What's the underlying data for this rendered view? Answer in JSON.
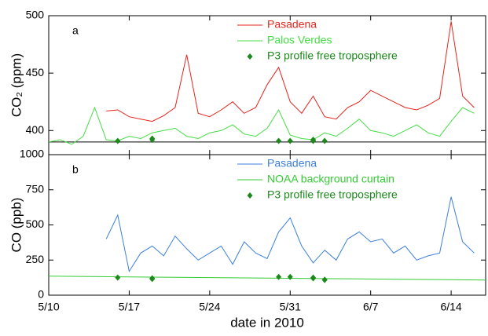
{
  "chart_data": [
    {
      "type": "line",
      "label": "a",
      "y_label": "CO₂ (ppm)",
      "xlim": [
        "2010-05-10",
        "2010-06-17"
      ],
      "ylim": [
        379,
        500
      ],
      "yticks": [
        400,
        450,
        500
      ],
      "hline": 390,
      "series": [
        {
          "name": "Pasadena",
          "color": "#e8231c",
          "style": "line",
          "x": [
            "2010-05-15",
            "2010-05-16",
            "2010-05-17",
            "2010-05-18",
            "2010-05-19",
            "2010-05-20",
            "2010-05-21",
            "2010-05-22",
            "2010-05-23",
            "2010-05-24",
            "2010-05-25",
            "2010-05-26",
            "2010-05-27",
            "2010-05-28",
            "2010-05-29",
            "2010-05-30",
            "2010-05-31",
            "2010-06-01",
            "2010-06-02",
            "2010-06-03",
            "2010-06-04",
            "2010-06-05",
            "2010-06-06",
            "2010-06-07",
            "2010-06-08",
            "2010-06-09",
            "2010-06-10",
            "2010-06-11",
            "2010-06-12",
            "2010-06-13",
            "2010-06-14",
            "2010-06-15",
            "2010-06-16"
          ],
          "values": [
            417,
            418,
            412,
            410,
            408,
            413,
            420,
            466,
            415,
            412,
            418,
            425,
            415,
            420,
            440,
            455,
            425,
            415,
            430,
            412,
            410,
            420,
            425,
            435,
            430,
            425,
            420,
            418,
            422,
            428,
            495,
            430,
            420
          ]
        },
        {
          "name": "Palos Verdes",
          "color": "#44dd44",
          "style": "line",
          "x": [
            "2010-05-10",
            "2010-05-11",
            "2010-05-12",
            "2010-05-13",
            "2010-05-14",
            "2010-05-15",
            "2010-05-16",
            "2010-05-17",
            "2010-05-18",
            "2010-05-19",
            "2010-05-20",
            "2010-05-21",
            "2010-05-22",
            "2010-05-23",
            "2010-05-24",
            "2010-05-25",
            "2010-05-26",
            "2010-05-27",
            "2010-05-28",
            "2010-05-29",
            "2010-05-30",
            "2010-05-31",
            "2010-06-01",
            "2010-06-02",
            "2010-06-03",
            "2010-06-04",
            "2010-06-05",
            "2010-06-06",
            "2010-06-07",
            "2010-06-08",
            "2010-06-09",
            "2010-06-10",
            "2010-06-11",
            "2010-06-12",
            "2010-06-13",
            "2010-06-14",
            "2010-06-15",
            "2010-06-16"
          ],
          "values": [
            390,
            392,
            388,
            395,
            420,
            392,
            391,
            395,
            393,
            398,
            400,
            402,
            395,
            393,
            398,
            400,
            405,
            397,
            395,
            402,
            418,
            396,
            393,
            392,
            398,
            395,
            402,
            410,
            400,
            398,
            395,
            400,
            405,
            398,
            395,
            408,
            420,
            415
          ]
        },
        {
          "name": "P3 profile free troposphere",
          "color": "#1b8a1b",
          "style": "markers",
          "x": [
            "2010-05-16",
            "2010-05-19",
            "2010-05-19",
            "2010-05-30",
            "2010-05-31",
            "2010-06-02",
            "2010-06-02",
            "2010-06-03"
          ],
          "values": [
            391,
            392,
            393,
            391,
            391,
            392,
            391,
            391
          ]
        }
      ]
    },
    {
      "type": "line",
      "label": "b",
      "y_label": "CO (ppb)",
      "x_label": "date in 2010",
      "xlim": [
        "2010-05-10",
        "2010-06-17"
      ],
      "ylim": [
        0,
        1000
      ],
      "yticks": [
        0,
        250,
        500,
        750,
        1000
      ],
      "xticks": [
        {
          "value": "2010-05-10",
          "label": "5/10"
        },
        {
          "value": "2010-05-17",
          "label": "5/17"
        },
        {
          "value": "2010-05-24",
          "label": "5/24"
        },
        {
          "value": "2010-05-31",
          "label": "5/31"
        },
        {
          "value": "2010-06-07",
          "label": "6/7"
        },
        {
          "value": "2010-06-14",
          "label": "6/14"
        }
      ],
      "series": [
        {
          "name": "Pasadena",
          "color": "#3b7fdd",
          "style": "line",
          "x": [
            "2010-05-15",
            "2010-05-16",
            "2010-05-17",
            "2010-05-18",
            "2010-05-19",
            "2010-05-20",
            "2010-05-21",
            "2010-05-22",
            "2010-05-23",
            "2010-05-24",
            "2010-05-25",
            "2010-05-26",
            "2010-05-27",
            "2010-05-28",
            "2010-05-29",
            "2010-05-30",
            "2010-05-31",
            "2010-06-01",
            "2010-06-02",
            "2010-06-03",
            "2010-06-04",
            "2010-06-05",
            "2010-06-06",
            "2010-06-07",
            "2010-06-08",
            "2010-06-09",
            "2010-06-10",
            "2010-06-11",
            "2010-06-12",
            "2010-06-13",
            "2010-06-14",
            "2010-06-15",
            "2010-06-16"
          ],
          "values": [
            400,
            570,
            170,
            300,
            350,
            280,
            420,
            330,
            250,
            300,
            350,
            220,
            380,
            300,
            260,
            450,
            550,
            350,
            230,
            320,
            250,
            400,
            450,
            380,
            400,
            300,
            350,
            250,
            280,
            300,
            700,
            380,
            300
          ]
        },
        {
          "name": "NOAA background curtain",
          "color": "#33cc33",
          "style": "line",
          "x": [
            "2010-05-10",
            "2010-05-17",
            "2010-05-24",
            "2010-05-31",
            "2010-06-07",
            "2010-06-14",
            "2010-06-17"
          ],
          "values": [
            135,
            130,
            125,
            120,
            115,
            110,
            108
          ]
        },
        {
          "name": "P3 profile free troposphere",
          "color": "#1b8a1b",
          "style": "markers",
          "x": [
            "2010-05-16",
            "2010-05-19",
            "2010-05-19",
            "2010-05-30",
            "2010-05-31",
            "2010-06-02",
            "2010-06-02",
            "2010-06-03",
            "2010-06-03"
          ],
          "values": [
            125,
            120,
            115,
            130,
            130,
            125,
            120,
            108,
            110
          ]
        }
      ]
    }
  ]
}
